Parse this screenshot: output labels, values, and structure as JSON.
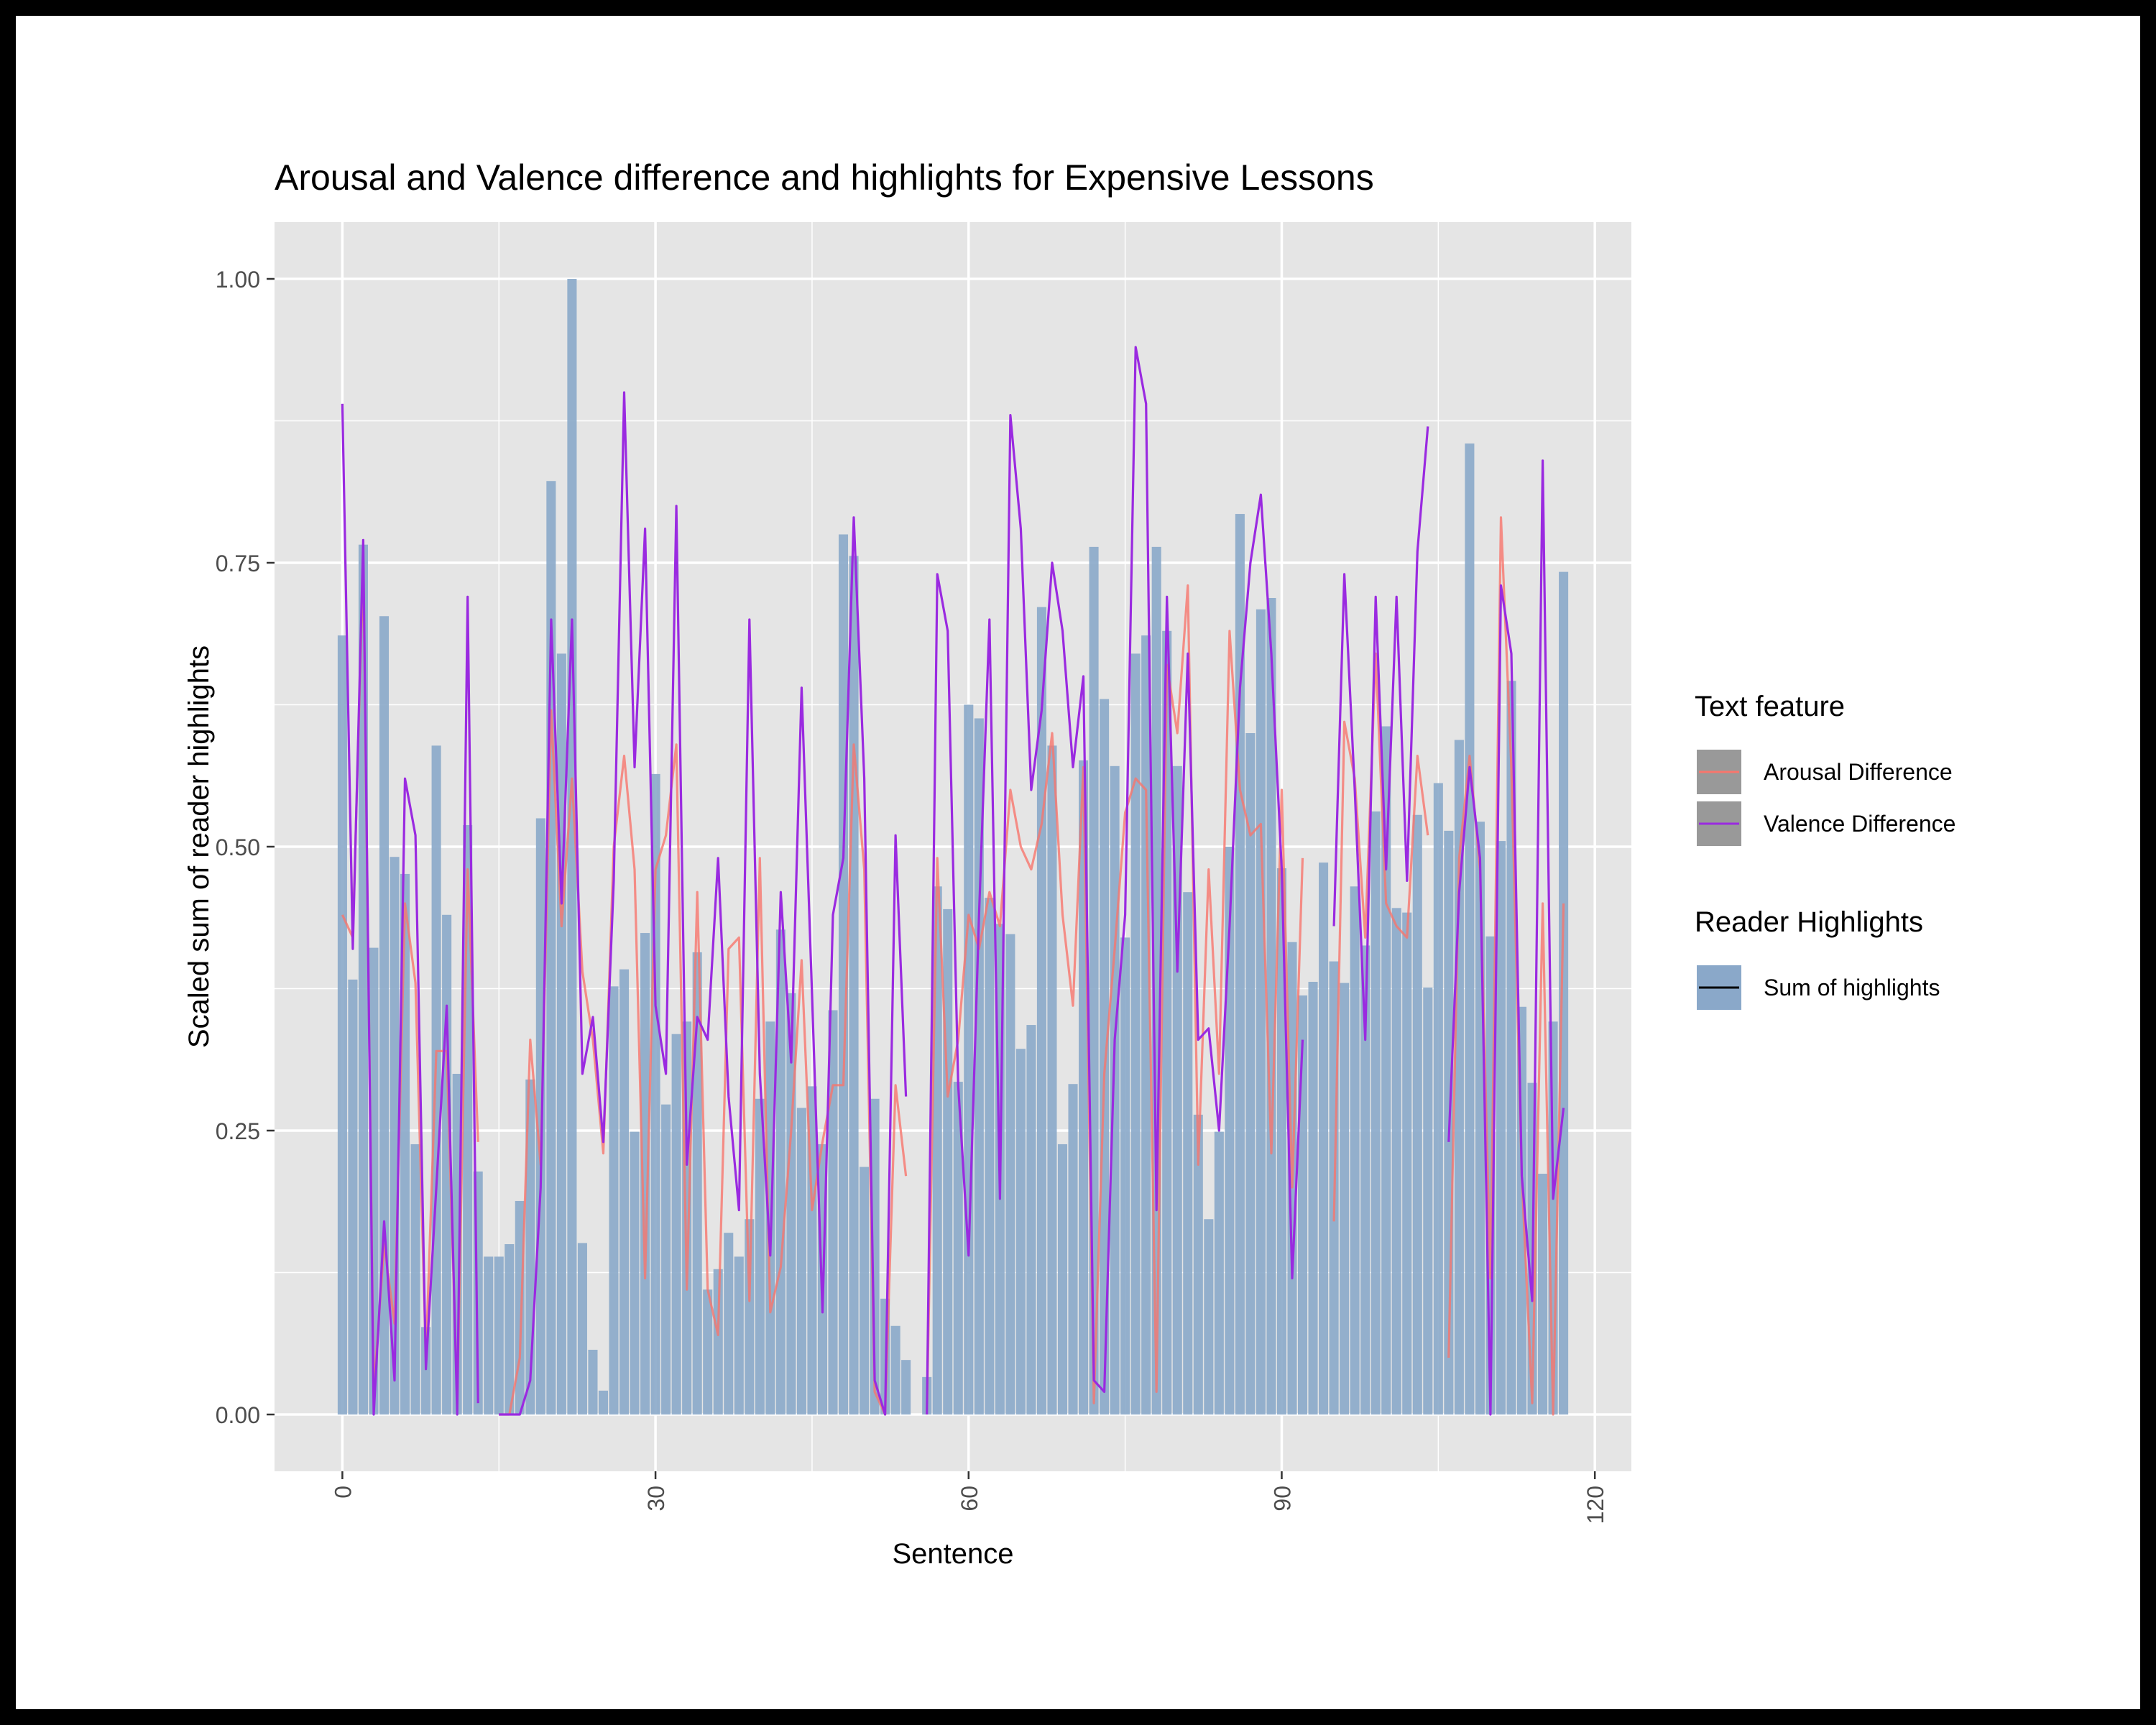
{
  "chart_data": {
    "type": "bar",
    "title": "Arousal and Valence difference and highlights for Expensive Lessons",
    "xlabel": "Sentence",
    "ylabel": "Scaled sum of reader highlights",
    "xlim": [
      -6.5,
      123.5
    ],
    "ylim": [
      -0.05,
      1.05
    ],
    "x_ticks": [
      0,
      30,
      60,
      90,
      120
    ],
    "x_tick_labels": [
      "0",
      "30",
      "60",
      "90",
      "120"
    ],
    "y_ticks": [
      0,
      0.25,
      0.5,
      0.75,
      1.0
    ],
    "y_tick_labels": [
      "0.00",
      "0.25",
      "0.50",
      "0.75",
      "1.00"
    ],
    "grid": true,
    "legend_position": "right",
    "legend_groups": [
      {
        "title": "Text feature",
        "entries": [
          {
            "label": "Arousal Difference",
            "color": "#f8766d",
            "key": "line"
          },
          {
            "label": "Valence Difference",
            "color": "#9a2ae0",
            "key": "line"
          }
        ]
      },
      {
        "title": "Reader Highlights",
        "entries": [
          {
            "label": "Sum of highlights",
            "color": "#000000",
            "key": "bar-line"
          }
        ]
      }
    ],
    "colors": {
      "panel": "#e5e5e5",
      "grid": "#ffffff",
      "bars": "#8aa8c9",
      "arousal": "#f8766d",
      "valence": "#9a2ae0",
      "legend_key": "#999999"
    },
    "bars": {
      "name": "Sum of highlights",
      "x_start": 0,
      "values": [
        0.686,
        0.383,
        0.766,
        0.411,
        0.703,
        0.491,
        0.476,
        0.238,
        0.077,
        0.589,
        0.44,
        0.3,
        0.519,
        0.214,
        0.139,
        0.139,
        0.15,
        0.188,
        0.295,
        0.525,
        0.822,
        0.67,
        1.0,
        0.151,
        0.057,
        0.021,
        0.377,
        0.392,
        0.249,
        0.424,
        0.564,
        0.273,
        0.335,
        0.346,
        0.407,
        0.11,
        0.128,
        0.16,
        0.139,
        0.172,
        0.278,
        0.346,
        0.427,
        0.371,
        0.27,
        0.289,
        0.238,
        0.356,
        0.775,
        0.756,
        0.218,
        0.278,
        0.102,
        0.078,
        0.048,
        0.0,
        0.033,
        0.465,
        0.445,
        0.293,
        0.625,
        0.613,
        0.455,
        0.432,
        0.423,
        0.322,
        0.343,
        0.711,
        0.589,
        0.238,
        0.291,
        0.576,
        0.764,
        0.63,
        0.571,
        0.42,
        0.67,
        0.686,
        0.764,
        0.69,
        0.571,
        0.46,
        0.264,
        0.172,
        0.249,
        0.5,
        0.793,
        0.6,
        0.709,
        0.719,
        0.481,
        0.416,
        0.369,
        0.381,
        0.486,
        0.399,
        0.38,
        0.465,
        0.413,
        0.531,
        0.606,
        0.446,
        0.442,
        0.528,
        0.376,
        0.556,
        0.514,
        0.594,
        0.855,
        0.522,
        0.421,
        0.505,
        0.646,
        0.359,
        0.292,
        0.212,
        0.346,
        0.742
      ]
    },
    "series": [
      {
        "name": "Arousal Difference",
        "x_start": 0,
        "values": [
          0.44,
          0.42,
          0.75,
          0.02,
          0.15,
          0.08,
          0.45,
          0.38,
          0.05,
          0.32,
          0.32,
          0.01,
          0.48,
          0.24,
          null,
          0.0,
          0.0,
          0.05,
          0.33,
          0.22,
          0.62,
          0.43,
          0.56,
          0.39,
          0.33,
          0.23,
          0.5,
          0.58,
          0.48,
          0.12,
          0.48,
          0.51,
          0.59,
          0.11,
          0.46,
          0.11,
          0.07,
          0.41,
          0.42,
          0.1,
          0.49,
          0.09,
          0.13,
          0.25,
          0.4,
          0.18,
          0.24,
          0.29,
          0.29,
          0.59,
          0.48,
          0.02,
          0.0,
          0.29,
          0.21,
          null,
          0.0,
          0.49,
          0.28,
          0.33,
          0.44,
          0.41,
          0.46,
          0.43,
          0.55,
          0.5,
          0.48,
          0.52,
          0.6,
          0.44,
          0.36,
          0.57,
          0.01,
          0.3,
          0.41,
          0.53,
          0.56,
          0.55,
          0.02,
          0.66,
          0.6,
          0.73,
          0.22,
          0.48,
          0.3,
          0.69,
          0.55,
          0.51,
          0.52,
          0.23,
          0.55,
          0.2,
          0.49,
          null,
          null,
          0.17,
          0.61,
          0.56,
          0.42,
          0.67,
          0.45,
          0.43,
          0.42,
          0.58,
          0.51,
          null,
          0.05,
          0.49,
          0.58,
          0.48,
          0.12,
          0.79,
          0.57,
          0.21,
          0.01,
          0.45,
          0.0,
          0.45
        ]
      },
      {
        "name": "Valence Difference",
        "x_start": 0,
        "values": [
          0.89,
          0.41,
          0.77,
          0.0,
          0.17,
          0.03,
          0.56,
          0.51,
          0.04,
          0.2,
          0.36,
          0.0,
          0.72,
          0.01,
          null,
          0.0,
          0.0,
          0.0,
          0.03,
          0.2,
          0.7,
          0.45,
          0.7,
          0.3,
          0.35,
          0.24,
          0.47,
          0.9,
          0.57,
          0.78,
          0.36,
          0.3,
          0.8,
          0.22,
          0.35,
          0.33,
          0.49,
          0.28,
          0.18,
          0.7,
          0.3,
          0.14,
          0.46,
          0.31,
          0.64,
          0.37,
          0.09,
          0.44,
          0.49,
          0.79,
          0.56,
          0.03,
          0.0,
          0.51,
          0.28,
          null,
          0.0,
          0.74,
          0.69,
          0.29,
          0.14,
          0.44,
          0.7,
          0.19,
          0.88,
          0.78,
          0.55,
          0.62,
          0.75,
          0.69,
          0.57,
          0.65,
          0.03,
          0.02,
          0.33,
          0.44,
          0.94,
          0.89,
          0.18,
          0.72,
          0.39,
          0.67,
          0.33,
          0.34,
          0.25,
          0.43,
          0.64,
          0.75,
          0.81,
          0.67,
          0.48,
          0.12,
          0.33,
          null,
          null,
          0.43,
          0.74,
          0.55,
          0.33,
          0.72,
          0.48,
          0.72,
          0.47,
          0.76,
          0.87,
          null,
          0.24,
          0.46,
          0.57,
          0.49,
          0.0,
          0.73,
          0.67,
          0.21,
          0.1,
          0.84,
          0.19,
          0.27
        ]
      }
    ]
  }
}
